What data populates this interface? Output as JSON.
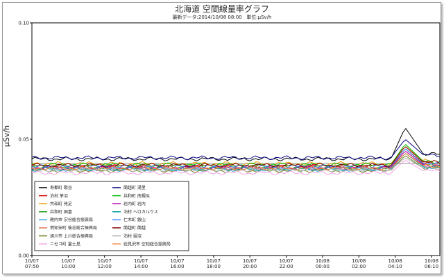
{
  "chart_data": {
    "type": "line",
    "title": "北海道 空間線量率グラフ",
    "subtitle_parts": {
      "latest_label": "最新データ:",
      "latest_value": "2014/10/08 08:00",
      "unit_label": "単位:",
      "unit_value": "μSv/h"
    },
    "ylabel": "μSv/h",
    "ylim": [
      0,
      0.1
    ],
    "y_ticks": [
      "0.00",
      "0.05",
      "0.10"
    ],
    "grid": false,
    "x_ticks": [
      {
        "date": "10/07",
        "time": "07:50"
      },
      {
        "date": "10/07",
        "time": "10:00"
      },
      {
        "date": "10/07",
        "time": "12:00"
      },
      {
        "date": "10/07",
        "time": "14:00"
      },
      {
        "date": "10/07",
        "time": "16:00"
      },
      {
        "date": "10/07",
        "time": "18:00"
      },
      {
        "date": "10/07",
        "time": "20:00"
      },
      {
        "date": "10/07",
        "time": "22:00"
      },
      {
        "date": "10/08",
        "time": "00:00"
      },
      {
        "date": "10/08",
        "time": "02:00"
      },
      {
        "date": "10/08",
        "time": "04:10"
      },
      {
        "date": "10/08",
        "time": "06:10"
      }
    ],
    "x_range": [
      "10/07 07:50",
      "10/08 08:00"
    ],
    "legend_position": "bottom-left",
    "series": [
      {
        "name": "寿都町 歌谷",
        "color": "#000000",
        "base": 0.0415,
        "peak": 0.055
      },
      {
        "name": "泊村 茅沼",
        "color": "#e00000",
        "base": 0.0385,
        "peak": 0.046
      },
      {
        "name": "共和町 発足",
        "color": "#e8a000",
        "base": 0.0395,
        "peak": 0.047
      },
      {
        "name": "共和町 国富",
        "color": "#20a020",
        "base": 0.038,
        "peak": 0.046
      },
      {
        "name": "稚内市 宗谷総合振興局",
        "color": "#30a0e0",
        "base": 0.037,
        "peak": 0.044
      },
      {
        "name": "倶知安町 後志総合振興局",
        "color": "#e07050",
        "base": 0.0375,
        "peak": 0.045
      },
      {
        "name": "旭川市 上川総合振興局",
        "color": "#708020",
        "base": 0.0365,
        "peak": 0.043
      },
      {
        "name": "ニセコ町 富士見",
        "color": "#f0a0e0",
        "base": 0.0355,
        "peak": 0.041
      },
      {
        "name": "蘭越町 湯里",
        "color": "#000080",
        "base": 0.042,
        "peak": 0.05
      },
      {
        "name": "共和町 南幌似",
        "color": "#00c000",
        "base": 0.039,
        "peak": 0.048
      },
      {
        "name": "岩内町 岩内",
        "color": "#b000b0",
        "base": 0.0378,
        "peak": 0.045
      },
      {
        "name": "泊村 ヘロカルウス",
        "color": "#00a0a0",
        "base": 0.0372,
        "peak": 0.044
      },
      {
        "name": "仁木町 銀山",
        "color": "#4080ff",
        "base": 0.0382,
        "peak": 0.046
      },
      {
        "name": "蘭越町 蘭越",
        "color": "#800000",
        "base": 0.0388,
        "peak": 0.047
      },
      {
        "name": "泊村 堀沼",
        "color": "#b0b0b0",
        "base": 0.0368,
        "peak": 0.042
      },
      {
        "name": "岩見沢市 空知総合振興局",
        "color": "#ff8030",
        "base": 0.0375,
        "peak": 0.044
      }
    ],
    "reference_lines": [
      0.0395
    ]
  }
}
